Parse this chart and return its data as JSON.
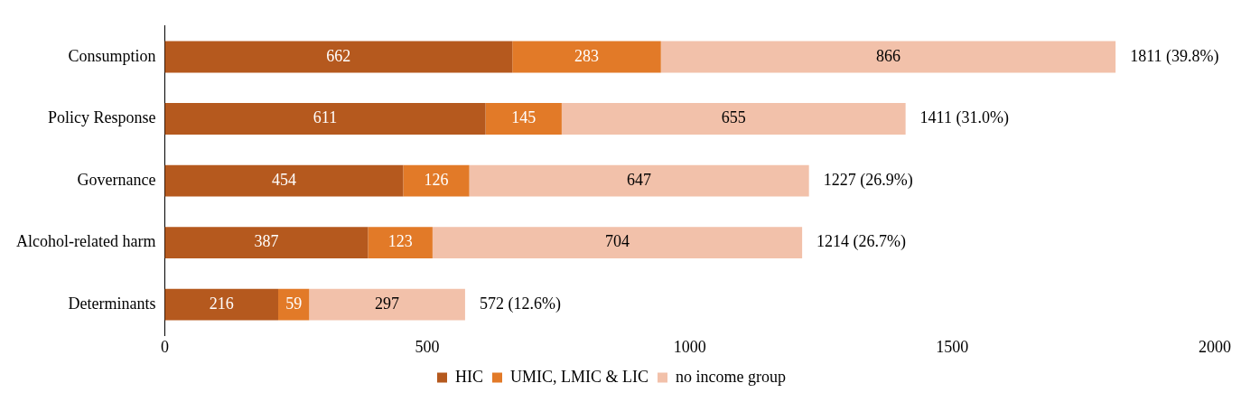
{
  "chart_data": {
    "type": "bar",
    "orientation": "horizontal",
    "stacked": true,
    "categories": [
      "Consumption",
      "Policy Response",
      "Governance",
      "Alcohol-related harm",
      "Determinants"
    ],
    "series": [
      {
        "name": "HIC",
        "color": "#b5591e",
        "values": [
          662,
          611,
          454,
          387,
          216
        ]
      },
      {
        "name": "UMIC, LMIC & LIC",
        "color": "#e27a28",
        "values": [
          283,
          145,
          126,
          123,
          59
        ]
      },
      {
        "name": "no income group",
        "color": "#f2c1aa",
        "values": [
          866,
          655,
          647,
          704,
          297
        ]
      }
    ],
    "xlim": [
      0,
      2000
    ],
    "xticks": [
      0,
      500,
      1000,
      1500,
      2000
    ],
    "data_labels": true,
    "totals": [
      "1811 (39.8%)",
      "1411 (31.0%)",
      "1227 (26.9%)",
      "1214 (26.7%)",
      "572 (12.6%)"
    ],
    "legend": "bottom"
  }
}
